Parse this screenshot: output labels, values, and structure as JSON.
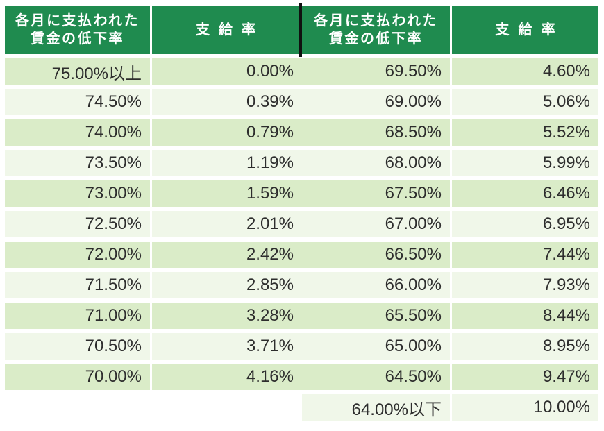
{
  "colors": {
    "page_background": "#ffffff",
    "header_green": "#1f8b4f",
    "row_green": "#daecc8",
    "row_green_pale": "#f0f7e9",
    "header_divider": "#101010",
    "header_text": "#ffffff",
    "cell_text": "#2d2d2d"
  },
  "header": {
    "decline_line1": "各月に支払われた",
    "decline_line2": "賃金の低下率",
    "rate": "支給率"
  },
  "chart_data": {
    "type": "table",
    "columns": [
      "各月に支払われた賃金の低下率",
      "支給率",
      "各月に支払われた賃金の低下率",
      "支給率"
    ],
    "rows": [
      [
        "75.00%以上",
        "0.00%",
        "69.50%",
        "4.60%"
      ],
      [
        "74.50%",
        "0.39%",
        "69.00%",
        "5.06%"
      ],
      [
        "74.00%",
        "0.79%",
        "68.50%",
        "5.52%"
      ],
      [
        "73.50%",
        "1.19%",
        "68.00%",
        "5.99%"
      ],
      [
        "73.00%",
        "1.59%",
        "67.50%",
        "6.46%"
      ],
      [
        "72.50%",
        "2.01%",
        "67.00%",
        "6.95%"
      ],
      [
        "72.00%",
        "2.42%",
        "66.50%",
        "7.44%"
      ],
      [
        "71.50%",
        "2.85%",
        "66.00%",
        "7.93%"
      ],
      [
        "71.00%",
        "3.28%",
        "65.50%",
        "8.44%"
      ],
      [
        "70.50%",
        "3.71%",
        "65.00%",
        "8.95%"
      ],
      [
        "70.00%",
        "4.16%",
        "64.50%",
        "9.47%"
      ],
      [
        "",
        "",
        "64.00%以下",
        "10.00%"
      ]
    ]
  }
}
